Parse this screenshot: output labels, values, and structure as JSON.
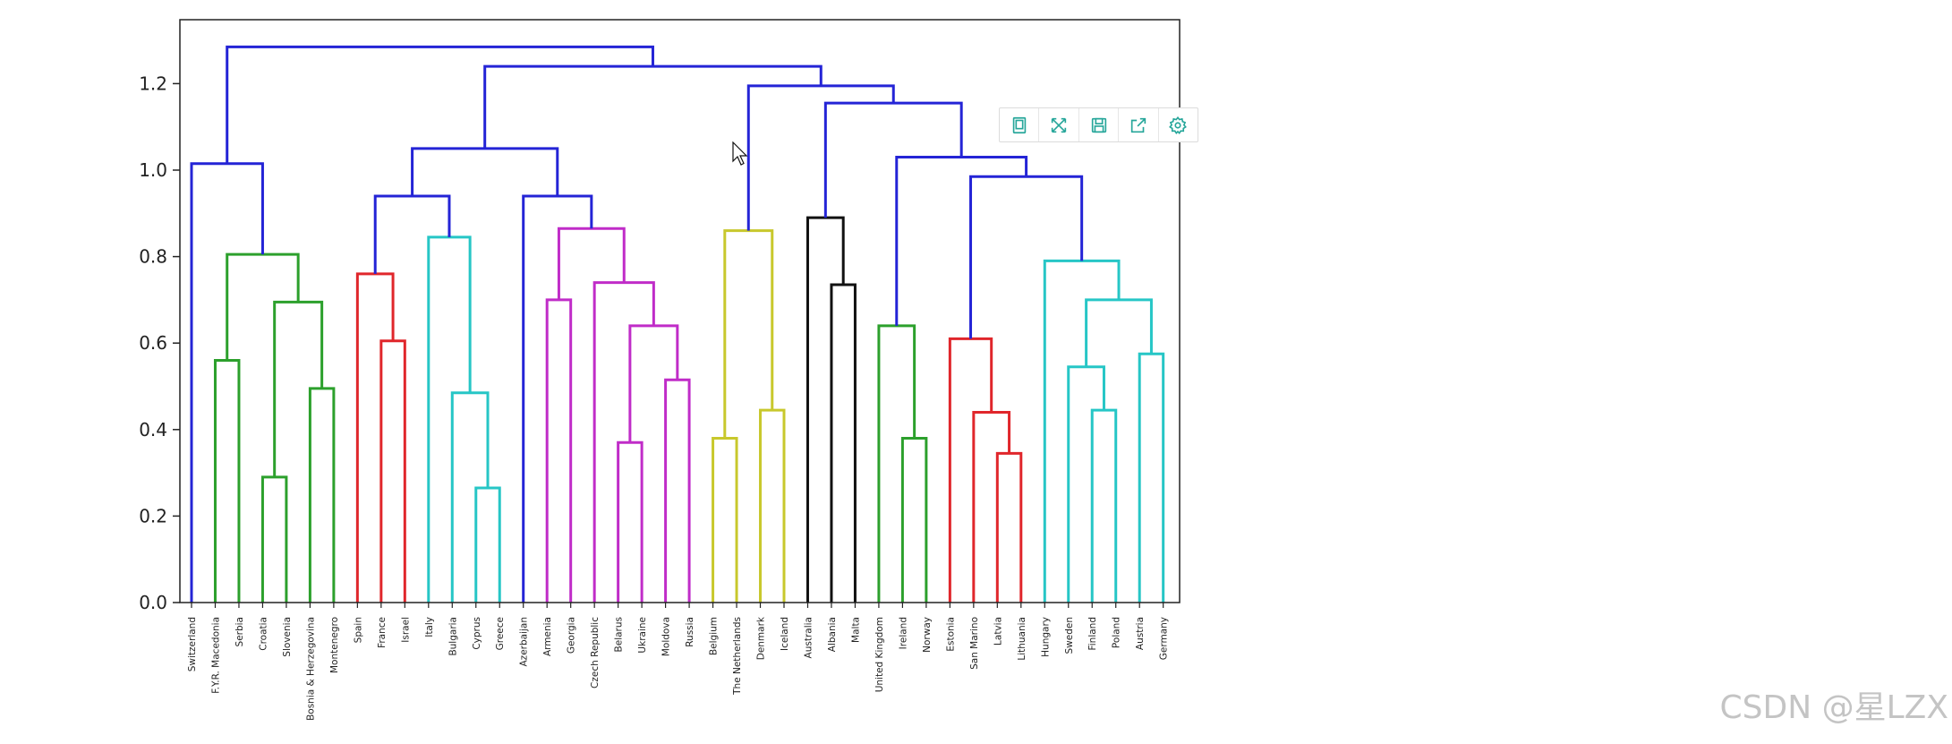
{
  "chart_data": {
    "type": "dendrogram",
    "ylim": [
      0,
      1.35
    ],
    "yticks": [
      "0.0",
      "0.2",
      "0.4",
      "0.6",
      "0.8",
      "1.0",
      "1.2"
    ],
    "ytick_values": [
      0,
      0.2,
      0.4,
      0.6,
      0.8,
      1.0,
      1.2
    ],
    "leaves": [
      "Switzerland",
      "F.Y.R. Macedonia",
      "Serbia",
      "Croatia",
      "Slovenia",
      "Bosnia & Herzegovina",
      "Montenegro",
      "Spain",
      "France",
      "Israel",
      "Italy",
      "Bulgaria",
      "Cyprus",
      "Greece",
      "Azerbaijan",
      "Armenia",
      "Georgia",
      "Czech Republic",
      "Belarus",
      "Ukraine",
      "Moldova",
      "Russia",
      "Belgium",
      "The Netherlands",
      "Denmark",
      "Iceland",
      "Australia",
      "Albania",
      "Malta",
      "United Kingdom",
      "Ireland",
      "Norway",
      "Estonia",
      "San Marino",
      "Latvia",
      "Lithuania",
      "Hungary",
      "Sweden",
      "Finland",
      "Poland",
      "Austria",
      "Germany"
    ],
    "colors": {
      "g": "#2ca02c",
      "r": "#e0262b",
      "c": "#26c6c6",
      "m": "#c02cc8",
      "y": "#c8c82c",
      "k": "#111111",
      "b": "#2424d6"
    },
    "merges": [
      {
        "a": "L3",
        "b": "L4",
        "h": 0.29,
        "color": "g"
      },
      {
        "a": "L5",
        "b": "L6",
        "h": 0.495,
        "color": "g"
      },
      {
        "a": "M0",
        "b": "M1",
        "h": 0.695,
        "color": "g"
      },
      {
        "a": "L1",
        "b": "L2",
        "h": 0.56,
        "color": "g"
      },
      {
        "a": "M3",
        "b": "M2",
        "h": 0.805,
        "color": "g"
      },
      {
        "a": "L0",
        "b": "M4",
        "h": 1.015,
        "color": "b"
      },
      {
        "a": "L8",
        "b": "L9",
        "h": 0.605,
        "color": "r"
      },
      {
        "a": "L7",
        "b": "M6",
        "h": 0.76,
        "color": "r"
      },
      {
        "a": "L12",
        "b": "L13",
        "h": 0.265,
        "color": "c"
      },
      {
        "a": "L11",
        "b": "M8",
        "h": 0.485,
        "color": "c"
      },
      {
        "a": "L10",
        "b": "M9",
        "h": 0.845,
        "color": "c"
      },
      {
        "a": "M7",
        "b": "M10",
        "h": 0.94,
        "color": "b"
      },
      {
        "a": "L15",
        "b": "L16",
        "h": 0.7,
        "color": "m"
      },
      {
        "a": "L18",
        "b": "L19",
        "h": 0.37,
        "color": "m"
      },
      {
        "a": "L20",
        "b": "L21",
        "h": 0.515,
        "color": "m"
      },
      {
        "a": "M13",
        "b": "M14",
        "h": 0.64,
        "color": "m"
      },
      {
        "a": "L17",
        "b": "M15",
        "h": 0.74,
        "color": "m"
      },
      {
        "a": "M12",
        "b": "M16",
        "h": 0.865,
        "color": "m"
      },
      {
        "a": "L14",
        "b": "M17",
        "h": 0.94,
        "color": "b"
      },
      {
        "a": "M11",
        "b": "M18",
        "h": 1.05,
        "color": "b"
      },
      {
        "a": "L22",
        "b": "L23",
        "h": 0.38,
        "color": "y"
      },
      {
        "a": "L24",
        "b": "L25",
        "h": 0.445,
        "color": "y"
      },
      {
        "a": "M20",
        "b": "M21",
        "h": 0.86,
        "color": "y"
      },
      {
        "a": "L27",
        "b": "L28",
        "h": 0.735,
        "color": "k"
      },
      {
        "a": "L26",
        "b": "M23",
        "h": 0.89,
        "color": "k"
      },
      {
        "a": "L30",
        "b": "L31",
        "h": 0.38,
        "color": "g"
      },
      {
        "a": "L29",
        "b": "M25",
        "h": 0.64,
        "color": "g"
      },
      {
        "a": "L34",
        "b": "L35",
        "h": 0.345,
        "color": "r"
      },
      {
        "a": "L33",
        "b": "M27",
        "h": 0.44,
        "color": "r"
      },
      {
        "a": "L32",
        "b": "M28",
        "h": 0.61,
        "color": "r"
      },
      {
        "a": "L38",
        "b": "L39",
        "h": 0.445,
        "color": "c"
      },
      {
        "a": "L37",
        "b": "M30",
        "h": 0.545,
        "color": "c"
      },
      {
        "a": "L40",
        "b": "L41",
        "h": 0.575,
        "color": "c"
      },
      {
        "a": "M31",
        "b": "M32",
        "h": 0.7,
        "color": "c"
      },
      {
        "a": "L36",
        "b": "M33",
        "h": 0.79,
        "color": "c"
      },
      {
        "a": "M29",
        "b": "M34",
        "h": 0.985,
        "color": "b"
      },
      {
        "a": "M26",
        "b": "M35",
        "h": 1.03,
        "color": "b"
      },
      {
        "a": "M24",
        "b": "M36",
        "h": 1.155,
        "color": "b"
      },
      {
        "a": "M22",
        "b": "M37",
        "h": 1.195,
        "color": "b"
      },
      {
        "a": "M19",
        "b": "M38",
        "h": 1.24,
        "color": "b"
      },
      {
        "a": "M5",
        "b": "M39",
        "h": 1.285,
        "color": "b"
      }
    ]
  },
  "toolbar": {
    "icons": [
      "data-view-icon",
      "zoom-icon",
      "save-icon",
      "share-icon",
      "gear-icon"
    ],
    "accent": "#26a69a"
  },
  "watermark": "CSDN @星LZX"
}
